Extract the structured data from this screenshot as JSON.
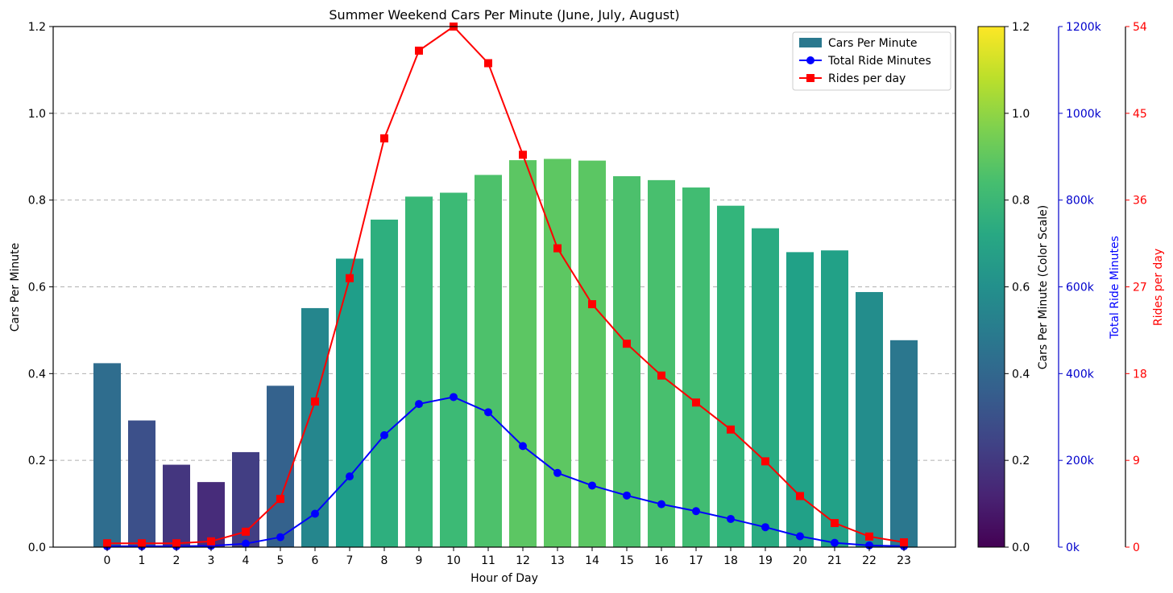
{
  "chart_data": {
    "type": "bar",
    "title": "Summer Weekend Cars Per Minute (June, July, August)",
    "xlabel": "Hour of Day",
    "ylabel": "Cars Per Minute",
    "ylim": [
      0,
      1.2
    ],
    "yticks": [
      "0.0",
      "0.2",
      "0.4",
      "0.6",
      "0.8",
      "1.0",
      "1.2"
    ],
    "grid": "y-dashed",
    "legend_position": "top-right",
    "x": [
      "0",
      "1",
      "2",
      "3",
      "4",
      "5",
      "6",
      "7",
      "8",
      "9",
      "10",
      "11",
      "12",
      "13",
      "14",
      "15",
      "16",
      "17",
      "18",
      "19",
      "20",
      "21",
      "22",
      "23"
    ],
    "series": [
      {
        "name": "Cars Per Minute",
        "kind": "bar",
        "axis": "left",
        "color_map": "viridis",
        "values": [
          0.424,
          0.292,
          0.19,
          0.15,
          0.219,
          0.372,
          0.551,
          0.665,
          0.755,
          0.808,
          0.817,
          0.858,
          0.892,
          0.895,
          0.891,
          0.855,
          0.846,
          0.829,
          0.787,
          0.735,
          0.68,
          0.684,
          0.588,
          0.477
        ]
      },
      {
        "name": "Total Ride Minutes",
        "kind": "line",
        "marker": "circle",
        "axis": "right-1",
        "color": "#0000ff",
        "values": [
          2000,
          2000,
          2000,
          3000,
          8000,
          23000,
          77000,
          163000,
          258000,
          330000,
          346000,
          311000,
          233000,
          171000,
          142000,
          119000,
          99000,
          83000,
          65000,
          46000,
          25000,
          10000,
          4000,
          2000
        ]
      },
      {
        "name": "Rides per day",
        "kind": "line",
        "marker": "square",
        "axis": "right-2",
        "color": "#ff0000",
        "values": [
          0.4,
          0.4,
          0.4,
          0.6,
          1.6,
          5.0,
          15.1,
          27.9,
          42.4,
          51.5,
          54.0,
          50.2,
          40.7,
          31.0,
          25.2,
          21.1,
          17.8,
          15.0,
          12.2,
          8.9,
          5.3,
          2.5,
          1.1,
          0.5
        ]
      }
    ],
    "colorbar": {
      "label": "Cars Per Minute (Color Scale)",
      "range": [
        0,
        1.2
      ],
      "ticks": [
        "0.0",
        "0.2",
        "0.4",
        "0.6",
        "0.8",
        "1.0",
        "1.2"
      ]
    },
    "right_axis_1": {
      "label": "Total Ride Minutes",
      "range": [
        0,
        1200000
      ],
      "ticks": [
        "0k",
        "200k",
        "400k",
        "600k",
        "800k",
        "1000k",
        "1200k"
      ],
      "color": "#0000cc"
    },
    "right_axis_2": {
      "label": "Rides per day",
      "range": [
        0,
        54
      ],
      "ticks": [
        "0",
        "9",
        "18",
        "27",
        "36",
        "45",
        "54"
      ],
      "color": "#ff0000"
    }
  }
}
